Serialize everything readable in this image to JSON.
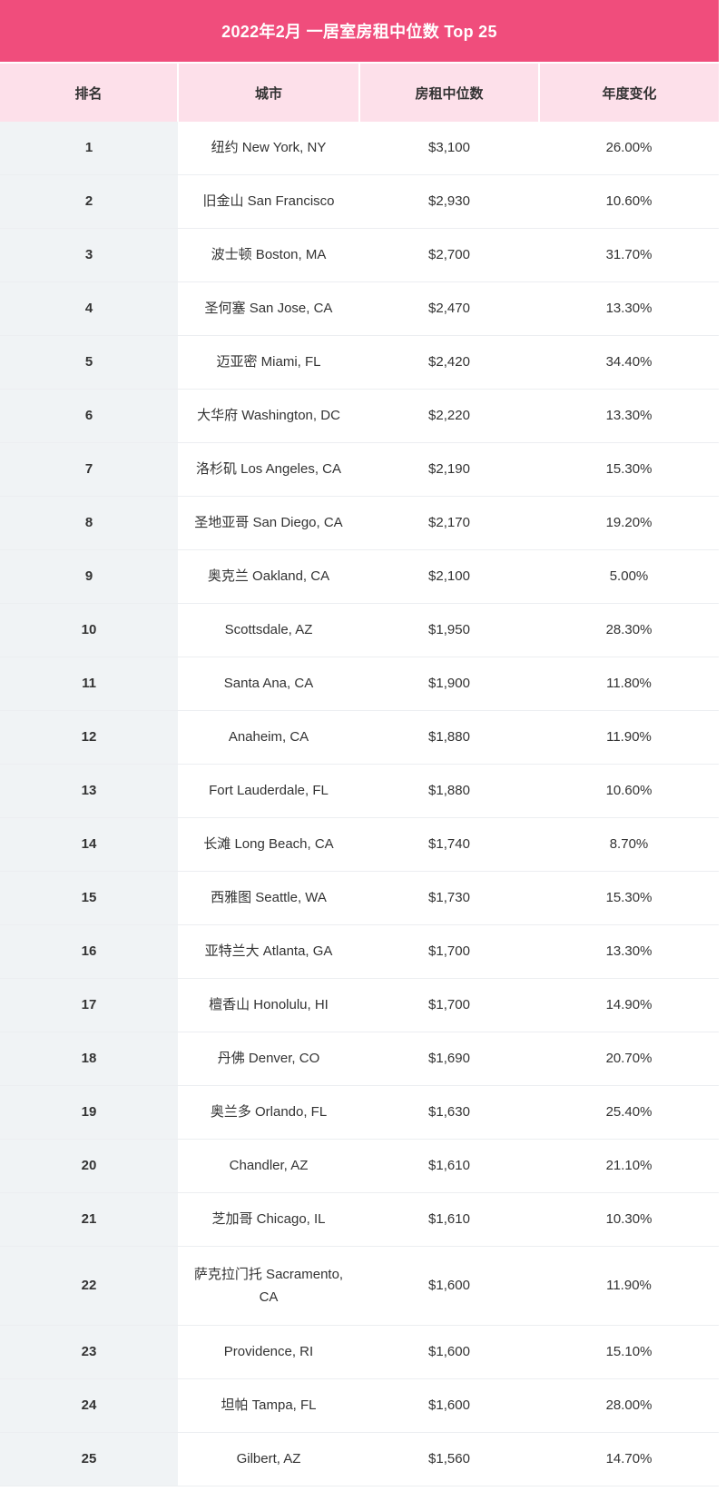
{
  "title": "2022年2月 一居室房租中位数 Top 25",
  "chart_data": {
    "type": "table",
    "title": "2022年2月 一居室房租中位数 Top 25",
    "columns": [
      "排名",
      "城市",
      "房租中位数",
      "年度变化"
    ],
    "rows": [
      [
        "1",
        "纽约 New York, NY",
        "$3,100",
        "26.00%"
      ],
      [
        "2",
        "旧金山 San Francisco",
        "$2,930",
        "10.60%"
      ],
      [
        "3",
        "波士顿 Boston, MA",
        "$2,700",
        "31.70%"
      ],
      [
        "4",
        "圣何塞 San Jose, CA",
        "$2,470",
        "13.30%"
      ],
      [
        "5",
        "迈亚密 Miami, FL",
        "$2,420",
        "34.40%"
      ],
      [
        "6",
        "大华府 Washington, DC",
        "$2,220",
        "13.30%"
      ],
      [
        "7",
        "洛杉矶 Los Angeles, CA",
        "$2,190",
        "15.30%"
      ],
      [
        "8",
        "圣地亚哥 San Diego, CA",
        "$2,170",
        "19.20%"
      ],
      [
        "9",
        "奥克兰 Oakland, CA",
        "$2,100",
        "5.00%"
      ],
      [
        "10",
        "Scottsdale, AZ",
        "$1,950",
        "28.30%"
      ],
      [
        "11",
        "Santa Ana, CA",
        "$1,900",
        "11.80%"
      ],
      [
        "12",
        "Anaheim, CA",
        "$1,880",
        "11.90%"
      ],
      [
        "13",
        "Fort Lauderdale, FL",
        "$1,880",
        "10.60%"
      ],
      [
        "14",
        "长滩 Long Beach, CA",
        "$1,740",
        "8.70%"
      ],
      [
        "15",
        "西雅图 Seattle, WA",
        "$1,730",
        "15.30%"
      ],
      [
        "16",
        "亚特兰大 Atlanta, GA",
        "$1,700",
        "13.30%"
      ],
      [
        "17",
        "檀香山 Honolulu, HI",
        "$1,700",
        "14.90%"
      ],
      [
        "18",
        "丹佛 Denver, CO",
        "$1,690",
        "20.70%"
      ],
      [
        "19",
        "奥兰多 Orlando, FL",
        "$1,630",
        "25.40%"
      ],
      [
        "20",
        "Chandler, AZ",
        "$1,610",
        "21.10%"
      ],
      [
        "21",
        "芝加哥 Chicago, IL",
        "$1,610",
        "10.30%"
      ],
      [
        "22",
        "萨克拉门托 Sacramento, CA",
        "$1,600",
        "11.90%"
      ],
      [
        "23",
        "Providence, RI",
        "$1,600",
        "15.10%"
      ],
      [
        "24",
        "坦帕 Tampa, FL",
        "$1,600",
        "28.00%"
      ],
      [
        "25",
        "Gilbert, AZ",
        "$1,560",
        "14.70%"
      ]
    ]
  },
  "colors": {
    "title_bg": "#f04d7c",
    "header_bg": "#fde0ea",
    "rank_col_bg": "#f0f3f5"
  }
}
